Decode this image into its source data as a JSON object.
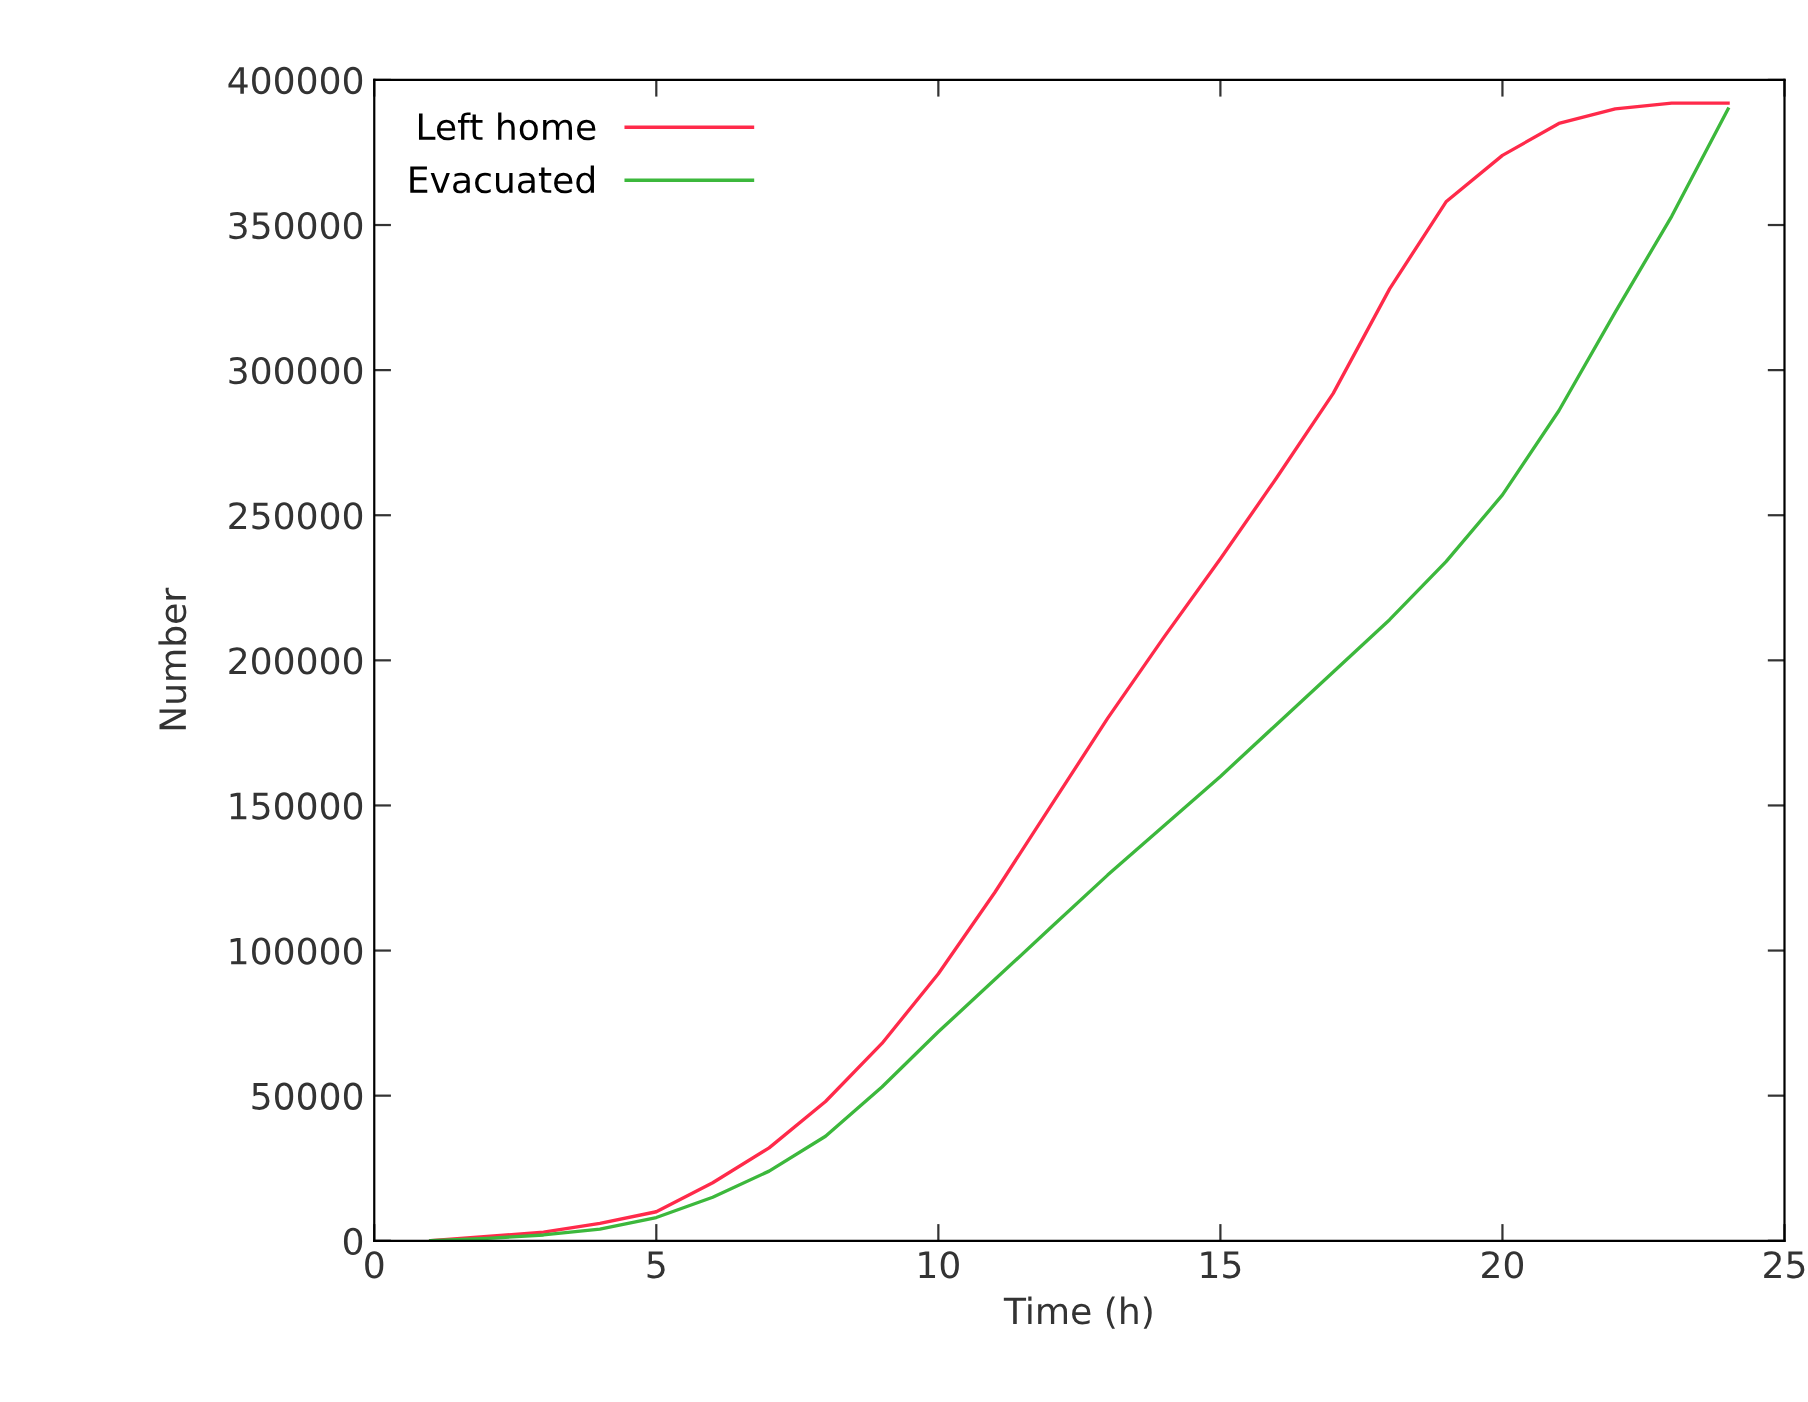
{
  "chart_data": {
    "type": "line",
    "xlabel": "Time (h)",
    "ylabel": "Number",
    "xlim": [
      0,
      25
    ],
    "ylim": [
      0,
      400000
    ],
    "xticks": [
      0,
      5,
      10,
      15,
      20,
      25
    ],
    "yticks": [
      0,
      50000,
      100000,
      150000,
      200000,
      250000,
      300000,
      350000,
      400000
    ],
    "grid": false,
    "legend": "top left",
    "marker": "none",
    "line_style": "solid",
    "series": [
      {
        "name": "Left home",
        "color": "#ff2a4a",
        "x": [
          1,
          2,
          3,
          4,
          5,
          6,
          7,
          8,
          9,
          10,
          11,
          12,
          13,
          14,
          15,
          16,
          17,
          18,
          19,
          20,
          21,
          22,
          23,
          24
        ],
        "values": [
          0,
          1500,
          3000,
          6000,
          10000,
          20000,
          32000,
          48000,
          68000,
          92000,
          120000,
          150000,
          180000,
          208000,
          235000,
          263000,
          292000,
          328000,
          358000,
          374000,
          385000,
          390000,
          392000,
          392000
        ]
      },
      {
        "name": "Evacuated",
        "color": "#3cb83c",
        "x": [
          1,
          2,
          3,
          4,
          5,
          6,
          7,
          8,
          9,
          10,
          11,
          12,
          13,
          14,
          15,
          16,
          17,
          18,
          19,
          20,
          21,
          22,
          23,
          24
        ],
        "values": [
          0,
          800,
          2000,
          4000,
          8000,
          15000,
          24000,
          36000,
          53000,
          72000,
          90000,
          108000,
          126000,
          143000,
          160000,
          178000,
          196000,
          214000,
          234000,
          257000,
          286000,
          320000,
          353000,
          390000
        ]
      }
    ]
  }
}
